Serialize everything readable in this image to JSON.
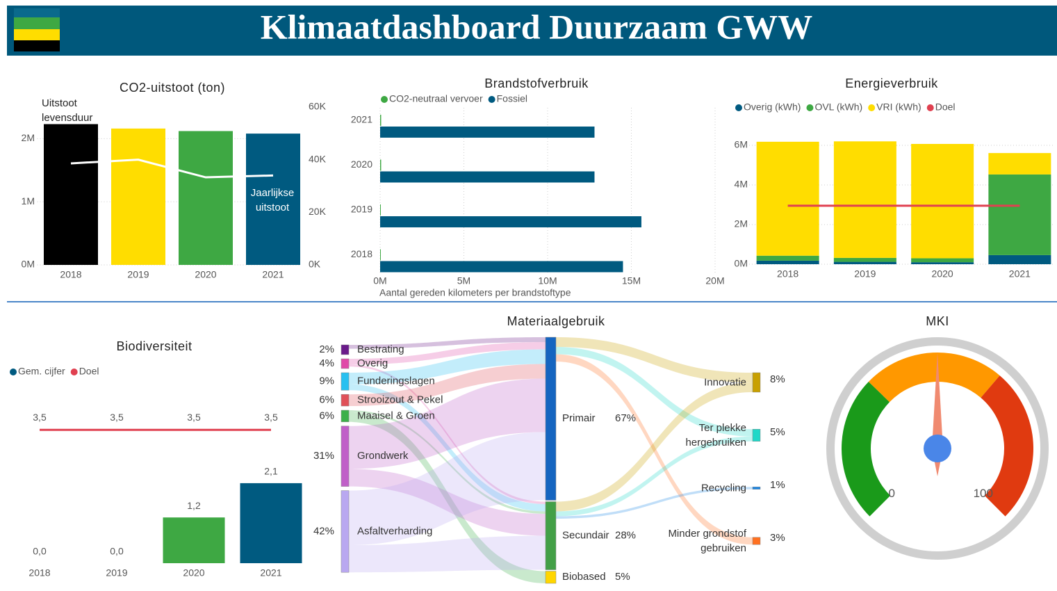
{
  "title": "Klimaatdashboard Duurzaam GWW",
  "chart_data": [
    {
      "type": "combo",
      "title": "CO2-uitstoot (ton)",
      "categories": [
        "2018",
        "2019",
        "2020",
        "2021"
      ],
      "series": [
        {
          "name": "Uitstoot levensduur",
          "type": "bar",
          "colors": [
            "#000000",
            "#ffdd00",
            "#3ea843",
            "#005a80"
          ],
          "values": [
            2230000,
            2160000,
            2120000,
            2080000
          ]
        },
        {
          "name": "Jaarlijkse uitstoot",
          "type": "line",
          "axis": "y2",
          "color": "#ffffff",
          "values": [
            38600,
            40000,
            33300,
            34000
          ]
        }
      ],
      "ylim": [
        0,
        2500000
      ],
      "yticks": [
        {
          "value": 0,
          "label": "0M"
        },
        {
          "value": 1000000,
          "label": "1M"
        },
        {
          "value": 2000000,
          "label": "2M"
        }
      ],
      "y2lim": [
        0,
        60000
      ],
      "y2ticks": [
        {
          "value": 0,
          "label": "0K"
        },
        {
          "value": 20000,
          "label": "20K"
        },
        {
          "value": 40000,
          "label": "40K"
        },
        {
          "value": 60000,
          "label": "60K"
        }
      ],
      "grid": true
    },
    {
      "type": "bar",
      "orientation": "horizontal",
      "title": "Brandstofverbruik",
      "categories": [
        "2021",
        "2020",
        "2019",
        "2018"
      ],
      "series": [
        {
          "name": "CO2-neutraal vervoer",
          "color": "#3ea843",
          "values": [
            60000,
            60000,
            0,
            0
          ]
        },
        {
          "name": "Fossiel",
          "color": "#005a80",
          "values": [
            12800000,
            12800000,
            15600000,
            14500000
          ]
        }
      ],
      "xlim": [
        0,
        20000000
      ],
      "xticks": [
        {
          "value": 0,
          "label": "0M"
        },
        {
          "value": 5000000,
          "label": "5M"
        },
        {
          "value": 10000000,
          "label": "10M"
        },
        {
          "value": 15000000,
          "label": "15M"
        },
        {
          "value": 20000000,
          "label": "20M"
        }
      ],
      "xlabel": "Aantal gereden kilometers per brandstoftype",
      "grid": true,
      "legend": "top-left"
    },
    {
      "type": "bar",
      "stacked": true,
      "title": "Energieverbruik",
      "categories": [
        "2018",
        "2019",
        "2020",
        "2021"
      ],
      "series": [
        {
          "name": "Overig (kWh)",
          "type": "bar",
          "color": "#005a80",
          "values": [
            180000,
            120000,
            100000,
            460000
          ]
        },
        {
          "name": "OVL (kWh)",
          "type": "bar",
          "color": "#3ea843",
          "values": [
            250000,
            200000,
            200000,
            4070000
          ]
        },
        {
          "name": "VRI (kWh)",
          "type": "bar",
          "color": "#ffdd00",
          "values": [
            5750000,
            5880000,
            5770000,
            1080000
          ]
        },
        {
          "name": "Doel",
          "type": "line",
          "color": "#e04050",
          "values": [
            2950000,
            2950000,
            2950000,
            2950000
          ]
        }
      ],
      "ylim": [
        0,
        6500000
      ],
      "yticks": [
        {
          "value": 0,
          "label": "0M"
        },
        {
          "value": 2000000,
          "label": "2M"
        },
        {
          "value": 4000000,
          "label": "4M"
        },
        {
          "value": 6000000,
          "label": "6M"
        }
      ],
      "grid": true,
      "legend": "top-left"
    },
    {
      "type": "combo",
      "title": "Biodiversiteit",
      "categories": [
        "2018",
        "2019",
        "2020",
        "2021"
      ],
      "series": [
        {
          "name": "Gem. cijfer",
          "type": "bar",
          "color": "#005a80",
          "colors": [
            "#3ea843",
            "#3ea843",
            "#3ea843",
            "#005a80"
          ],
          "values": [
            0,
            0,
            1.2,
            2.1
          ],
          "value_labels": [
            "0,0",
            "0,0",
            "1,2",
            "2,1"
          ]
        },
        {
          "name": "Doel",
          "type": "line",
          "color": "#e04050",
          "values": [
            3.5,
            3.5,
            3.5,
            3.5
          ],
          "value_labels": [
            "3,5",
            "3,5",
            "3,5",
            "3,5"
          ]
        }
      ],
      "ylim": [
        0,
        4
      ],
      "legend": "top-left"
    },
    {
      "type": "sankey",
      "title": "Materiaalgebruik",
      "nodes": [
        {
          "label": "Bestrating",
          "column": 0,
          "value": 2,
          "value_label": "2%",
          "color": "#6a1b8a"
        },
        {
          "label": "Overig",
          "column": 0,
          "value": 4,
          "value_label": "4%",
          "color": "#e04aa8"
        },
        {
          "label": "Funderingslagen",
          "column": 0,
          "value": 9,
          "value_label": "9%",
          "color": "#29c0f0"
        },
        {
          "label": "Strooizout & Pekel",
          "column": 0,
          "value": 6,
          "value_label": "6%",
          "color": "#e05058"
        },
        {
          "label": "Maaisel & Groen",
          "column": 0,
          "value": 6,
          "value_label": "6%",
          "color": "#3cb04a"
        },
        {
          "label": "Grondwerk",
          "column": 0,
          "value": 31,
          "value_label": "31%",
          "color": "#c060c8"
        },
        {
          "label": "Asfaltverharding",
          "column": 0,
          "value": 42,
          "value_label": "42%",
          "color": "#b9a8f0"
        },
        {
          "label": "Primair",
          "column": 1,
          "value": 67,
          "value_label": "67%",
          "color": "#1565c0"
        },
        {
          "label": "Secundair",
          "column": 1,
          "value": 28,
          "value_label": "28%",
          "color": "#43a047"
        },
        {
          "label": "Biobased",
          "column": 1,
          "value": 5,
          "value_label": "5%",
          "color": "#ffd600"
        },
        {
          "label": "Innovatie",
          "column": 2,
          "value": 8,
          "value_label": "8%",
          "color": "#c8a000"
        },
        {
          "label": "Ter plekke hergebruiken",
          "column": 2,
          "value": 5,
          "value_label": "5%",
          "color": "#20d8c8"
        },
        {
          "label": "Recycling",
          "column": 2,
          "value": 1,
          "value_label": "1%",
          "color": "#1e88e5"
        },
        {
          "label": "Minder grondstof gebruiken",
          "column": 2,
          "value": 3,
          "value_label": "3%",
          "color": "#ff7020"
        }
      ],
      "links": [
        {
          "source": 0,
          "target": 7,
          "value": 2
        },
        {
          "source": 1,
          "target": 7,
          "value": 3
        },
        {
          "source": 1,
          "target": 8,
          "value": 1
        },
        {
          "source": 2,
          "target": 7,
          "value": 6
        },
        {
          "source": 2,
          "target": 8,
          "value": 3
        },
        {
          "source": 3,
          "target": 7,
          "value": 6
        },
        {
          "source": 4,
          "target": 8,
          "value": 1
        },
        {
          "source": 4,
          "target": 9,
          "value": 5
        },
        {
          "source": 5,
          "target": 7,
          "value": 22
        },
        {
          "source": 5,
          "target": 8,
          "value": 9
        },
        {
          "source": 6,
          "target": 7,
          "value": 28
        },
        {
          "source": 6,
          "target": 8,
          "value": 14
        },
        {
          "source": 7,
          "target": 10,
          "value": 4
        },
        {
          "source": 7,
          "target": 11,
          "value": 3
        },
        {
          "source": 7,
          "target": 13,
          "value": 3
        },
        {
          "source": 8,
          "target": 10,
          "value": 4
        },
        {
          "source": 8,
          "target": 11,
          "value": 2
        },
        {
          "source": 8,
          "target": 12,
          "value": 1
        }
      ]
    },
    {
      "type": "gauge",
      "title": "MKI",
      "value": 50,
      "lim": [
        0,
        100
      ],
      "ticks": [
        0,
        100
      ],
      "bands": [
        {
          "to": 33,
          "color": "#1a9a1a"
        },
        {
          "to": 65,
          "color": "#ff9800"
        },
        {
          "to": 100,
          "color": "#e03a10"
        }
      ],
      "needle_color": "#f08a70",
      "hub_color": "#4a86e8"
    }
  ]
}
